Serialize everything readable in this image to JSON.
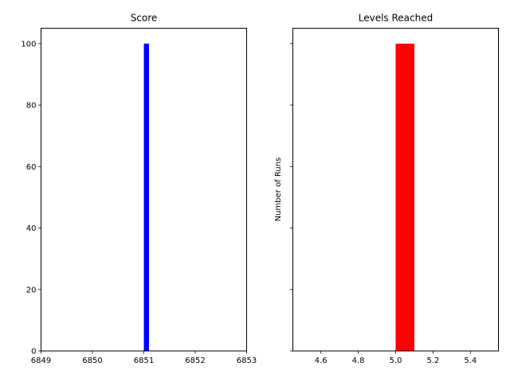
{
  "chart_data": [
    {
      "type": "bar",
      "title": "Score",
      "xlabel": "",
      "ylabel": "",
      "xlim": [
        6849,
        6853
      ],
      "ylim": [
        0,
        105
      ],
      "xticks": [
        6849,
        6850,
        6851,
        6852,
        6853
      ],
      "yticks": [
        0,
        20,
        40,
        60,
        80,
        100
      ],
      "bars": [
        {
          "x_start": 6851.0,
          "x_end": 6851.1,
          "value": 100
        }
      ],
      "color": "#0000ff",
      "grid": false
    },
    {
      "type": "bar",
      "title": "Levels Reached",
      "xlabel": "",
      "ylabel": "Number of Runs",
      "xlim": [
        4.45,
        5.55
      ],
      "ylim": [
        0,
        105
      ],
      "xticks": [
        4.6,
        4.8,
        5.0,
        5.2,
        5.4
      ],
      "yticks": [
        0,
        20,
        40,
        60,
        80,
        100
      ],
      "yticklabels_shown": false,
      "bars": [
        {
          "x_start": 5.0,
          "x_end": 5.1,
          "value": 100
        }
      ],
      "color": "#ff0000",
      "grid": false
    }
  ]
}
